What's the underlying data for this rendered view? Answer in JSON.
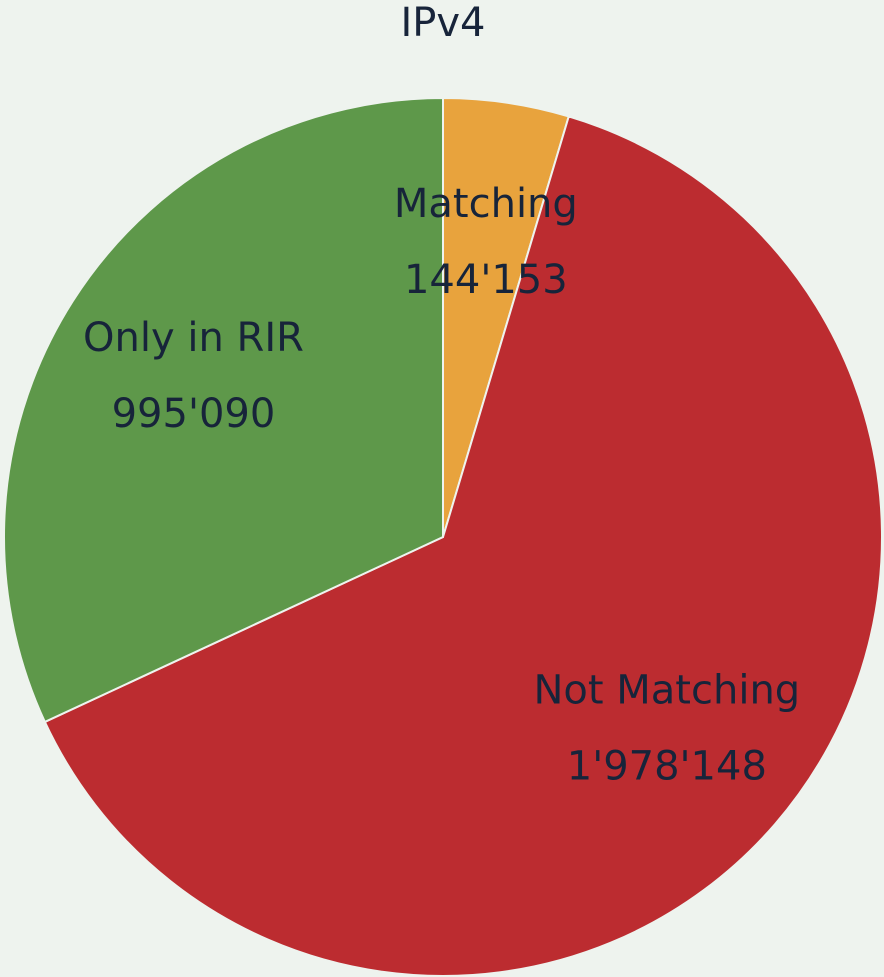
{
  "chart_data": {
    "type": "pie",
    "title": "IPv4",
    "categories": [
      "Matching",
      "Not Matching",
      "Only in RIR"
    ],
    "values": [
      144153,
      1978148,
      995090
    ],
    "value_labels": [
      "144'153",
      "1'978'148",
      "995'090"
    ],
    "colors": [
      "#e8a33d",
      "#bc2c30",
      "#5e984a"
    ]
  }
}
